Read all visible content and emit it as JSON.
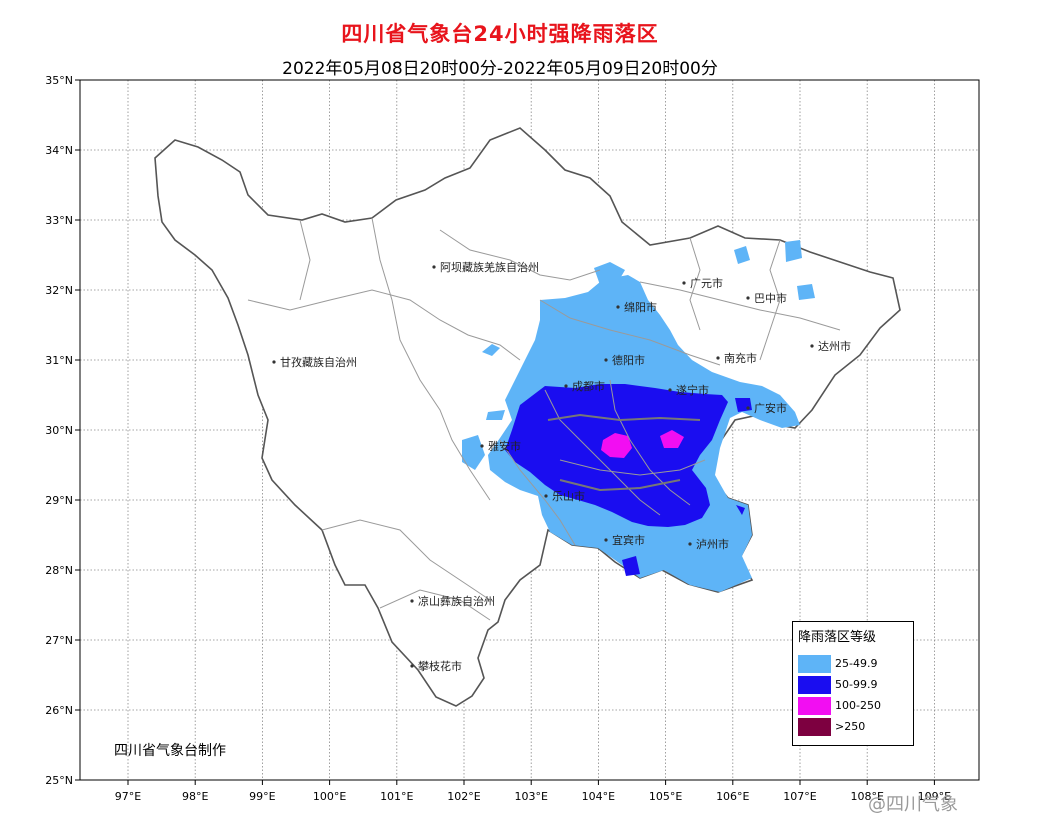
{
  "header": {
    "title": "四川省气象台24小时强降雨落区",
    "subtitle": "2022年05月08日20时00分-2022年05月09日20时00分"
  },
  "axes": {
    "lat_labels": [
      "35°N",
      "34°N",
      "33°N",
      "32°N",
      "31°N",
      "30°N",
      "29°N",
      "28°N",
      "27°N",
      "26°N",
      "25°N"
    ],
    "lon_labels": [
      "97°E",
      "98°E",
      "99°E",
      "100°E",
      "101°E",
      "102°E",
      "103°E",
      "104°E",
      "105°E",
      "106°E",
      "107°E",
      "108°E",
      "109°E"
    ],
    "grid": "dotted"
  },
  "places": [
    "阿坝藏族羌族自治州",
    "甘孜藏族自治州",
    "凉山彝族自治州",
    "攀枝花市",
    "雅安市",
    "乐山市",
    "成都市",
    "德阳市",
    "绵阳市",
    "广元市",
    "巴中市",
    "达州市",
    "南充市",
    "遂宁市",
    "广安市",
    "宜宾市",
    "泸州市"
  ],
  "legend": {
    "title": "降雨落区等级",
    "items": [
      {
        "label": "25-49.9",
        "color": "#5eb4f7"
      },
      {
        "label": "50-99.9",
        "color": "#1a0df0"
      },
      {
        "label": "100-250",
        "color": "#f20ef2"
      },
      {
        "label": ">250",
        "color": "#7d0040"
      }
    ]
  },
  "credit": "四川省气象台制作",
  "watermark": "@四川气象"
}
